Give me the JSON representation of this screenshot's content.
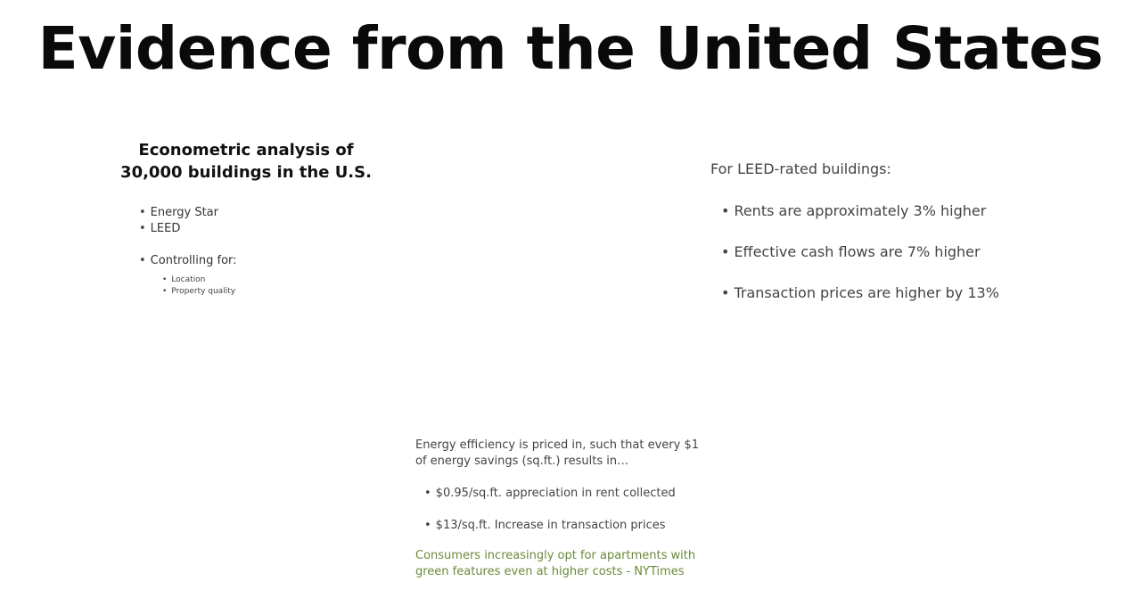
{
  "slide": {
    "title": "Evidence from the United States"
  },
  "left": {
    "heading": "Econometric analysis of 30,000 buildings in the U.S.",
    "items": [
      "Energy Star",
      "LEED",
      "Controlling for:"
    ],
    "sub_items": [
      "Location",
      "Property quality"
    ]
  },
  "right": {
    "intro": "For LEED-rated buildings:",
    "items": [
      "Rents are approximately 3% higher",
      "Effective cash flows are 7% higher",
      "Transaction prices are higher by 13%"
    ]
  },
  "bottom": {
    "intro": "Energy efficiency is priced in, such that every $1 of energy savings (sq.ft.) results in…",
    "items": [
      "$0.95/sq.ft. appreciation in rent collected",
      "$13/sq.ft. Increase in transaction prices"
    ],
    "quote": "Consumers increasingly opt for apartments with green features even at higher costs - NYTimes",
    "quote_color": "#6b8a3a"
  }
}
